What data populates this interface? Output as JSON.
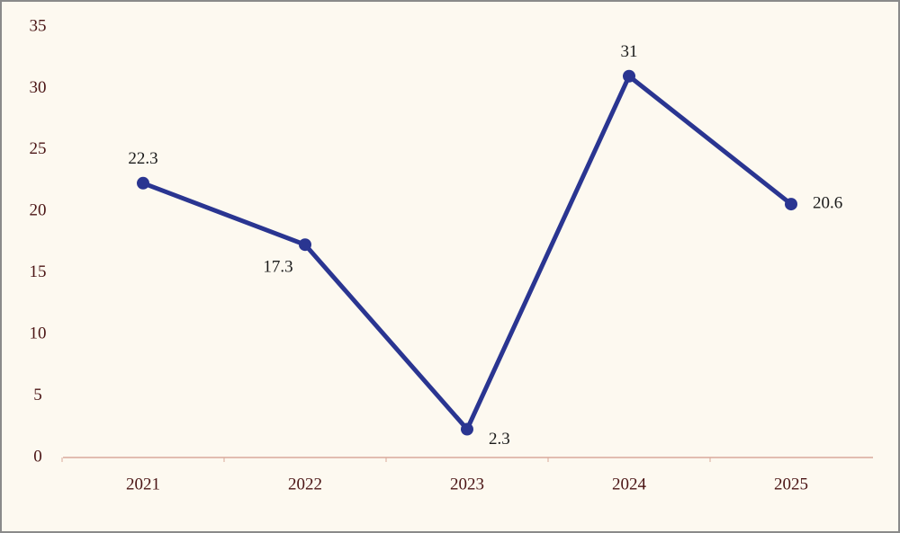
{
  "chart_data": {
    "type": "line",
    "categories": [
      "2021",
      "2022",
      "2023",
      "2024",
      "2025"
    ],
    "series": [
      {
        "color": "#2a3591",
        "values": [
          22.3,
          17.3,
          2.3,
          31,
          20.6
        ]
      }
    ],
    "ylim": [
      0,
      35
    ],
    "yticks": [
      0,
      5,
      10,
      15,
      20,
      25,
      30,
      35
    ],
    "grid": false
  }
}
